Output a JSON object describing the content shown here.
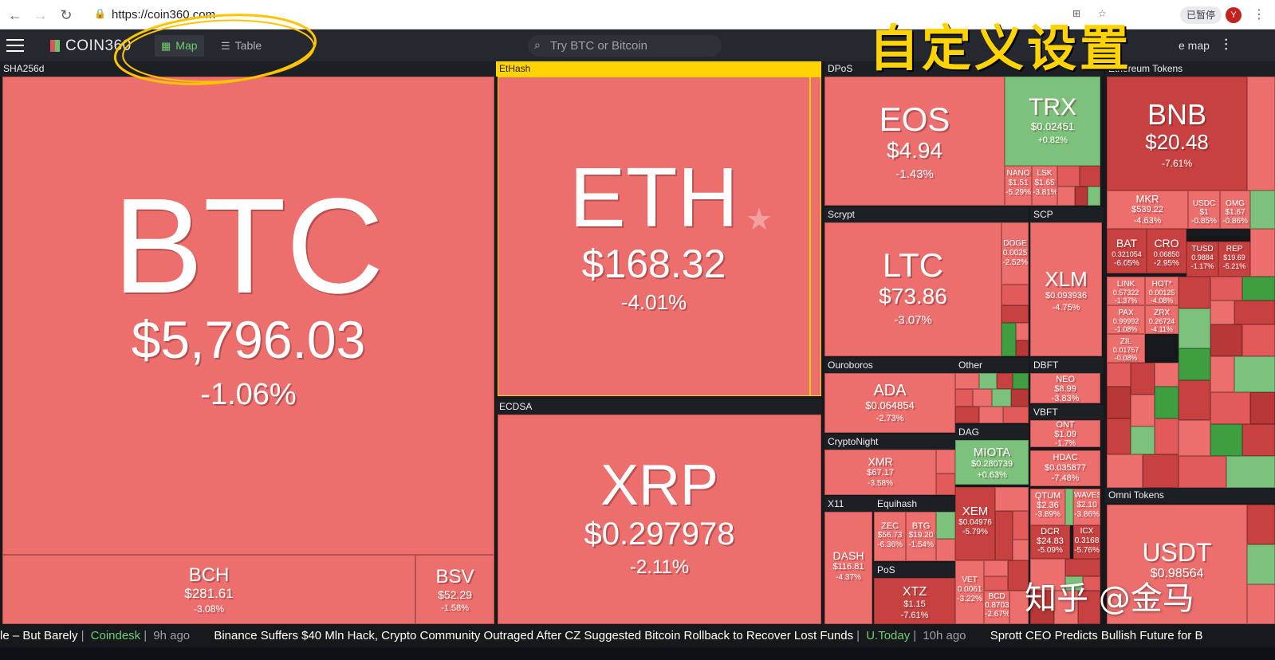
{
  "browser": {
    "url": "https://coin360.com",
    "pause_label": "已暂停",
    "profile_initial": "Y"
  },
  "app": {
    "logo": "COIN360",
    "tabs": [
      {
        "label": "Map"
      },
      {
        "label": "Table"
      }
    ],
    "search_placeholder": "Try BTC or Bitcoin",
    "right_partial": "e map"
  },
  "annotation": "自定义设置",
  "watermark": "知乎 @金马",
  "groups": {
    "sha256d": "SHA256d",
    "ethash": "EtHash",
    "ecdsa": "ECDSA",
    "dpos": "DPoS",
    "scrypt": "Scrypt",
    "scp": "SCP",
    "ouroboros": "Ouroboros",
    "other": "Other",
    "dbft": "DBFT",
    "vbft": "VBFT",
    "cryptonight": "CryptoNight",
    "dag": "DAG",
    "x11": "X11",
    "equihash": "Equihash",
    "pos": "PoS",
    "omni": "Omni Tokens",
    "ethtokens": "Ethereum Tokens"
  },
  "coins": {
    "btc": {
      "sym": "BTC",
      "price": "$5,796.03",
      "chg": "-1.06%"
    },
    "bch": {
      "sym": "BCH",
      "price": "$281.61",
      "chg": "-3.08%"
    },
    "bsv": {
      "sym": "BSV",
      "price": "$52.29",
      "chg": "-1.58%"
    },
    "eth": {
      "sym": "ETH",
      "price": "$168.32",
      "chg": "-4.01%"
    },
    "xrp": {
      "sym": "XRP",
      "price": "$0.297978",
      "chg": "-2.11%"
    },
    "eos": {
      "sym": "EOS",
      "price": "$4.94",
      "chg": "-1.43%"
    },
    "trx": {
      "sym": "TRX",
      "price": "$0.02451",
      "chg": "+0.82%"
    },
    "nano": {
      "sym": "NANO",
      "price": "$1.51",
      "chg": "-5.29%"
    },
    "lsk": {
      "sym": "LSK",
      "price": "$1.65",
      "chg": "-3.81%"
    },
    "ltc": {
      "sym": "LTC",
      "price": "$73.86",
      "chg": "-3.07%"
    },
    "doge": {
      "sym": "DOGE",
      "price": "0.0025",
      "chg": "-2.52%"
    },
    "xlm": {
      "sym": "XLM",
      "price": "$0.093936",
      "chg": "-4.75%"
    },
    "ada": {
      "sym": "ADA",
      "price": "$0.064854",
      "chg": "-2.73%"
    },
    "neo": {
      "sym": "NEO",
      "price": "$8.99",
      "chg": "-3.83%"
    },
    "ont": {
      "sym": "ONT",
      "price": "$1.09",
      "chg": "-1.7%"
    },
    "xmr": {
      "sym": "XMR",
      "price": "$67.17",
      "chg": "-3.58%"
    },
    "miota": {
      "sym": "MIOTA",
      "price": "$0.280739",
      "chg": "+0.63%"
    },
    "hdac": {
      "sym": "HDAC",
      "price": "$0.035877",
      "chg": "-7.48%"
    },
    "dash": {
      "sym": "DASH",
      "price": "$116.81",
      "chg": "-4.37%"
    },
    "zec": {
      "sym": "ZEC",
      "price": "$56.73",
      "chg": "-6.36%"
    },
    "btg": {
      "sym": "BTG",
      "price": "$19.20",
      "chg": "-1.54%"
    },
    "xem": {
      "sym": "XEM",
      "price": "$0.04976",
      "chg": "-5.79%"
    },
    "qtum": {
      "sym": "QTUM",
      "price": "$2.36",
      "chg": "-3.89%"
    },
    "waves": {
      "sym": "WAVES",
      "price": "$2.10",
      "chg": "-3.86%"
    },
    "dcr": {
      "sym": "DCR",
      "price": "$24.83",
      "chg": "-5.09%"
    },
    "icx": {
      "sym": "ICX",
      "price": "0.3168",
      "chg": "-5.76%"
    },
    "xtz": {
      "sym": "XTZ",
      "price": "$1.15",
      "chg": "-7.61%"
    },
    "vet": {
      "sym": "VET",
      "price": "0.0061",
      "chg": "-3.22%"
    },
    "bcd": {
      "sym": "BCD",
      "price": "0.8703",
      "chg": "-2.67%"
    },
    "usdt": {
      "sym": "USDT",
      "price": "$0.98564",
      "chg": ""
    },
    "bnb": {
      "sym": "BNB",
      "price": "$20.48",
      "chg": "-7.61%"
    },
    "mkr": {
      "sym": "MKR",
      "price": "$539.22",
      "chg": "-4.63%"
    },
    "usdc": {
      "sym": "USDC",
      "price": "$1",
      "chg": "-0.85%"
    },
    "omg": {
      "sym": "OMG",
      "price": "$1.67",
      "chg": "-0.86%"
    },
    "bat": {
      "sym": "BAT",
      "price": "0.321054",
      "chg": "-6.05%"
    },
    "cro": {
      "sym": "CRO",
      "price": "0.06850",
      "chg": "-2.95%"
    },
    "tusd": {
      "sym": "TUSD",
      "price": "0.9884",
      "chg": "-1.17%"
    },
    "rep": {
      "sym": "REP",
      "price": "$19.69",
      "chg": "-5.21%"
    },
    "link": {
      "sym": "LINK",
      "price": "0.57322",
      "chg": "-1.37%"
    },
    "hot": {
      "sym": "HOT*",
      "price": "0.00125",
      "chg": "-4.08%"
    },
    "pax": {
      "sym": "PAX",
      "price": "0.99992",
      "chg": "-1.08%"
    },
    "zrx": {
      "sym": "ZRX",
      "price": "0.26724",
      "chg": "-4.11%"
    },
    "zil": {
      "sym": "ZIL",
      "price": "0.01757",
      "chg": "-0.08%"
    }
  },
  "ticker": [
    {
      "text": "le – But Barely",
      "source": "Coindesk",
      "ago": "9h ago"
    },
    {
      "text": "Binance Suffers $40 Mln Hack, Crypto Community Outraged After CZ Suggested Bitcoin Rollback to Recover Lost Funds",
      "source": "U.Today",
      "ago": "10h ago"
    },
    {
      "text": "Sprott CEO Predicts Bullish Future for B",
      "source": "",
      "ago": ""
    }
  ]
}
